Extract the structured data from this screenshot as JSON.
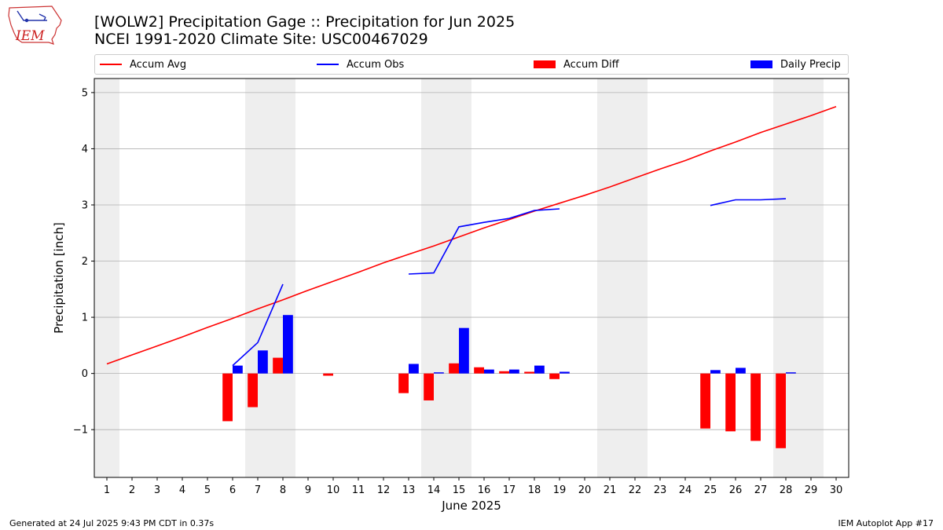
{
  "header": {
    "logo_text": "IEM",
    "title_line1": "[WOLW2] Precipitation Gage :: Precipitation for Jun 2025",
    "title_line2": "NCEI 1991-2020 Climate Site: USC00467029"
  },
  "legend": {
    "accum_avg": "Accum Avg",
    "accum_obs": "Accum Obs",
    "accum_diff": "Accum Diff",
    "daily_precip": "Daily Precip"
  },
  "colors": {
    "accum_avg": "#ff0000",
    "accum_obs": "#0000ff",
    "accum_diff": "#ff0000",
    "daily_precip": "#0000ff",
    "weekend_shade": "#eeeeee",
    "grid": "#b0b0b0"
  },
  "chart_data": {
    "type": "bar",
    "xlabel": "June 2025",
    "ylabel": "Precipitation [inch]",
    "xlim": [
      0.5,
      30.5
    ],
    "ylim": [
      -1.85,
      5.25
    ],
    "yticks": [
      -1,
      0,
      1,
      2,
      3,
      4,
      5
    ],
    "ytick_labels": [
      "−1",
      "0",
      "1",
      "2",
      "3",
      "4",
      "5"
    ],
    "xticks": [
      1,
      2,
      3,
      4,
      5,
      6,
      7,
      8,
      9,
      10,
      11,
      12,
      13,
      14,
      15,
      16,
      17,
      18,
      19,
      20,
      21,
      22,
      23,
      24,
      25,
      26,
      27,
      28,
      29,
      30
    ],
    "grid": "horizontal",
    "legend_position": "top",
    "weekend_spans": [
      [
        0.5,
        1.5
      ],
      [
        6.5,
        8.5
      ],
      [
        13.5,
        15.5
      ],
      [
        20.5,
        22.5
      ],
      [
        27.5,
        29.5
      ]
    ],
    "series": [
      {
        "name": "Accum Avg",
        "kind": "line",
        "x": [
          1,
          2,
          3,
          4,
          5,
          6,
          7,
          8,
          9,
          10,
          11,
          12,
          13,
          14,
          15,
          16,
          17,
          18,
          19,
          20,
          21,
          22,
          23,
          24,
          25,
          26,
          27,
          28,
          29,
          30
        ],
        "y": [
          0.17,
          0.33,
          0.49,
          0.65,
          0.82,
          0.98,
          1.15,
          1.31,
          1.48,
          1.64,
          1.8,
          1.97,
          2.12,
          2.27,
          2.43,
          2.59,
          2.74,
          2.89,
          3.03,
          3.17,
          3.32,
          3.48,
          3.64,
          3.79,
          3.96,
          4.12,
          4.29,
          4.44,
          4.59,
          4.75
        ]
      },
      {
        "name": "Accum Obs",
        "kind": "line",
        "x": [
          6,
          7,
          8,
          null,
          13,
          14,
          15,
          16,
          17,
          18,
          19,
          null,
          25,
          26,
          27,
          28
        ],
        "y": [
          0.14,
          0.55,
          1.59,
          null,
          1.77,
          1.79,
          2.61,
          2.69,
          2.76,
          2.9,
          2.93,
          null,
          2.99,
          3.09,
          3.09,
          3.11
        ]
      },
      {
        "name": "Accum Diff",
        "kind": "bar",
        "x": [
          6,
          7,
          8,
          10,
          13,
          14,
          15,
          16,
          17,
          18,
          19,
          25,
          26,
          27,
          28
        ],
        "y": [
          -0.85,
          -0.6,
          0.28,
          -0.04,
          -0.35,
          -0.48,
          0.18,
          0.11,
          0.04,
          0.03,
          -0.1,
          -0.98,
          -1.03,
          -1.2,
          -1.33
        ]
      },
      {
        "name": "Daily Precip",
        "kind": "bar",
        "x": [
          6,
          7,
          8,
          13,
          14,
          15,
          16,
          17,
          18,
          19,
          25,
          26,
          28
        ],
        "y": [
          0.14,
          0.41,
          1.04,
          0.17,
          0.02,
          0.81,
          0.07,
          0.07,
          0.14,
          0.03,
          0.06,
          0.1,
          0.02
        ]
      }
    ]
  },
  "footer": {
    "generated": "Generated at 24 Jul 2025 9:43 PM CDT in 0.37s",
    "app": "IEM Autoplot App #17"
  }
}
